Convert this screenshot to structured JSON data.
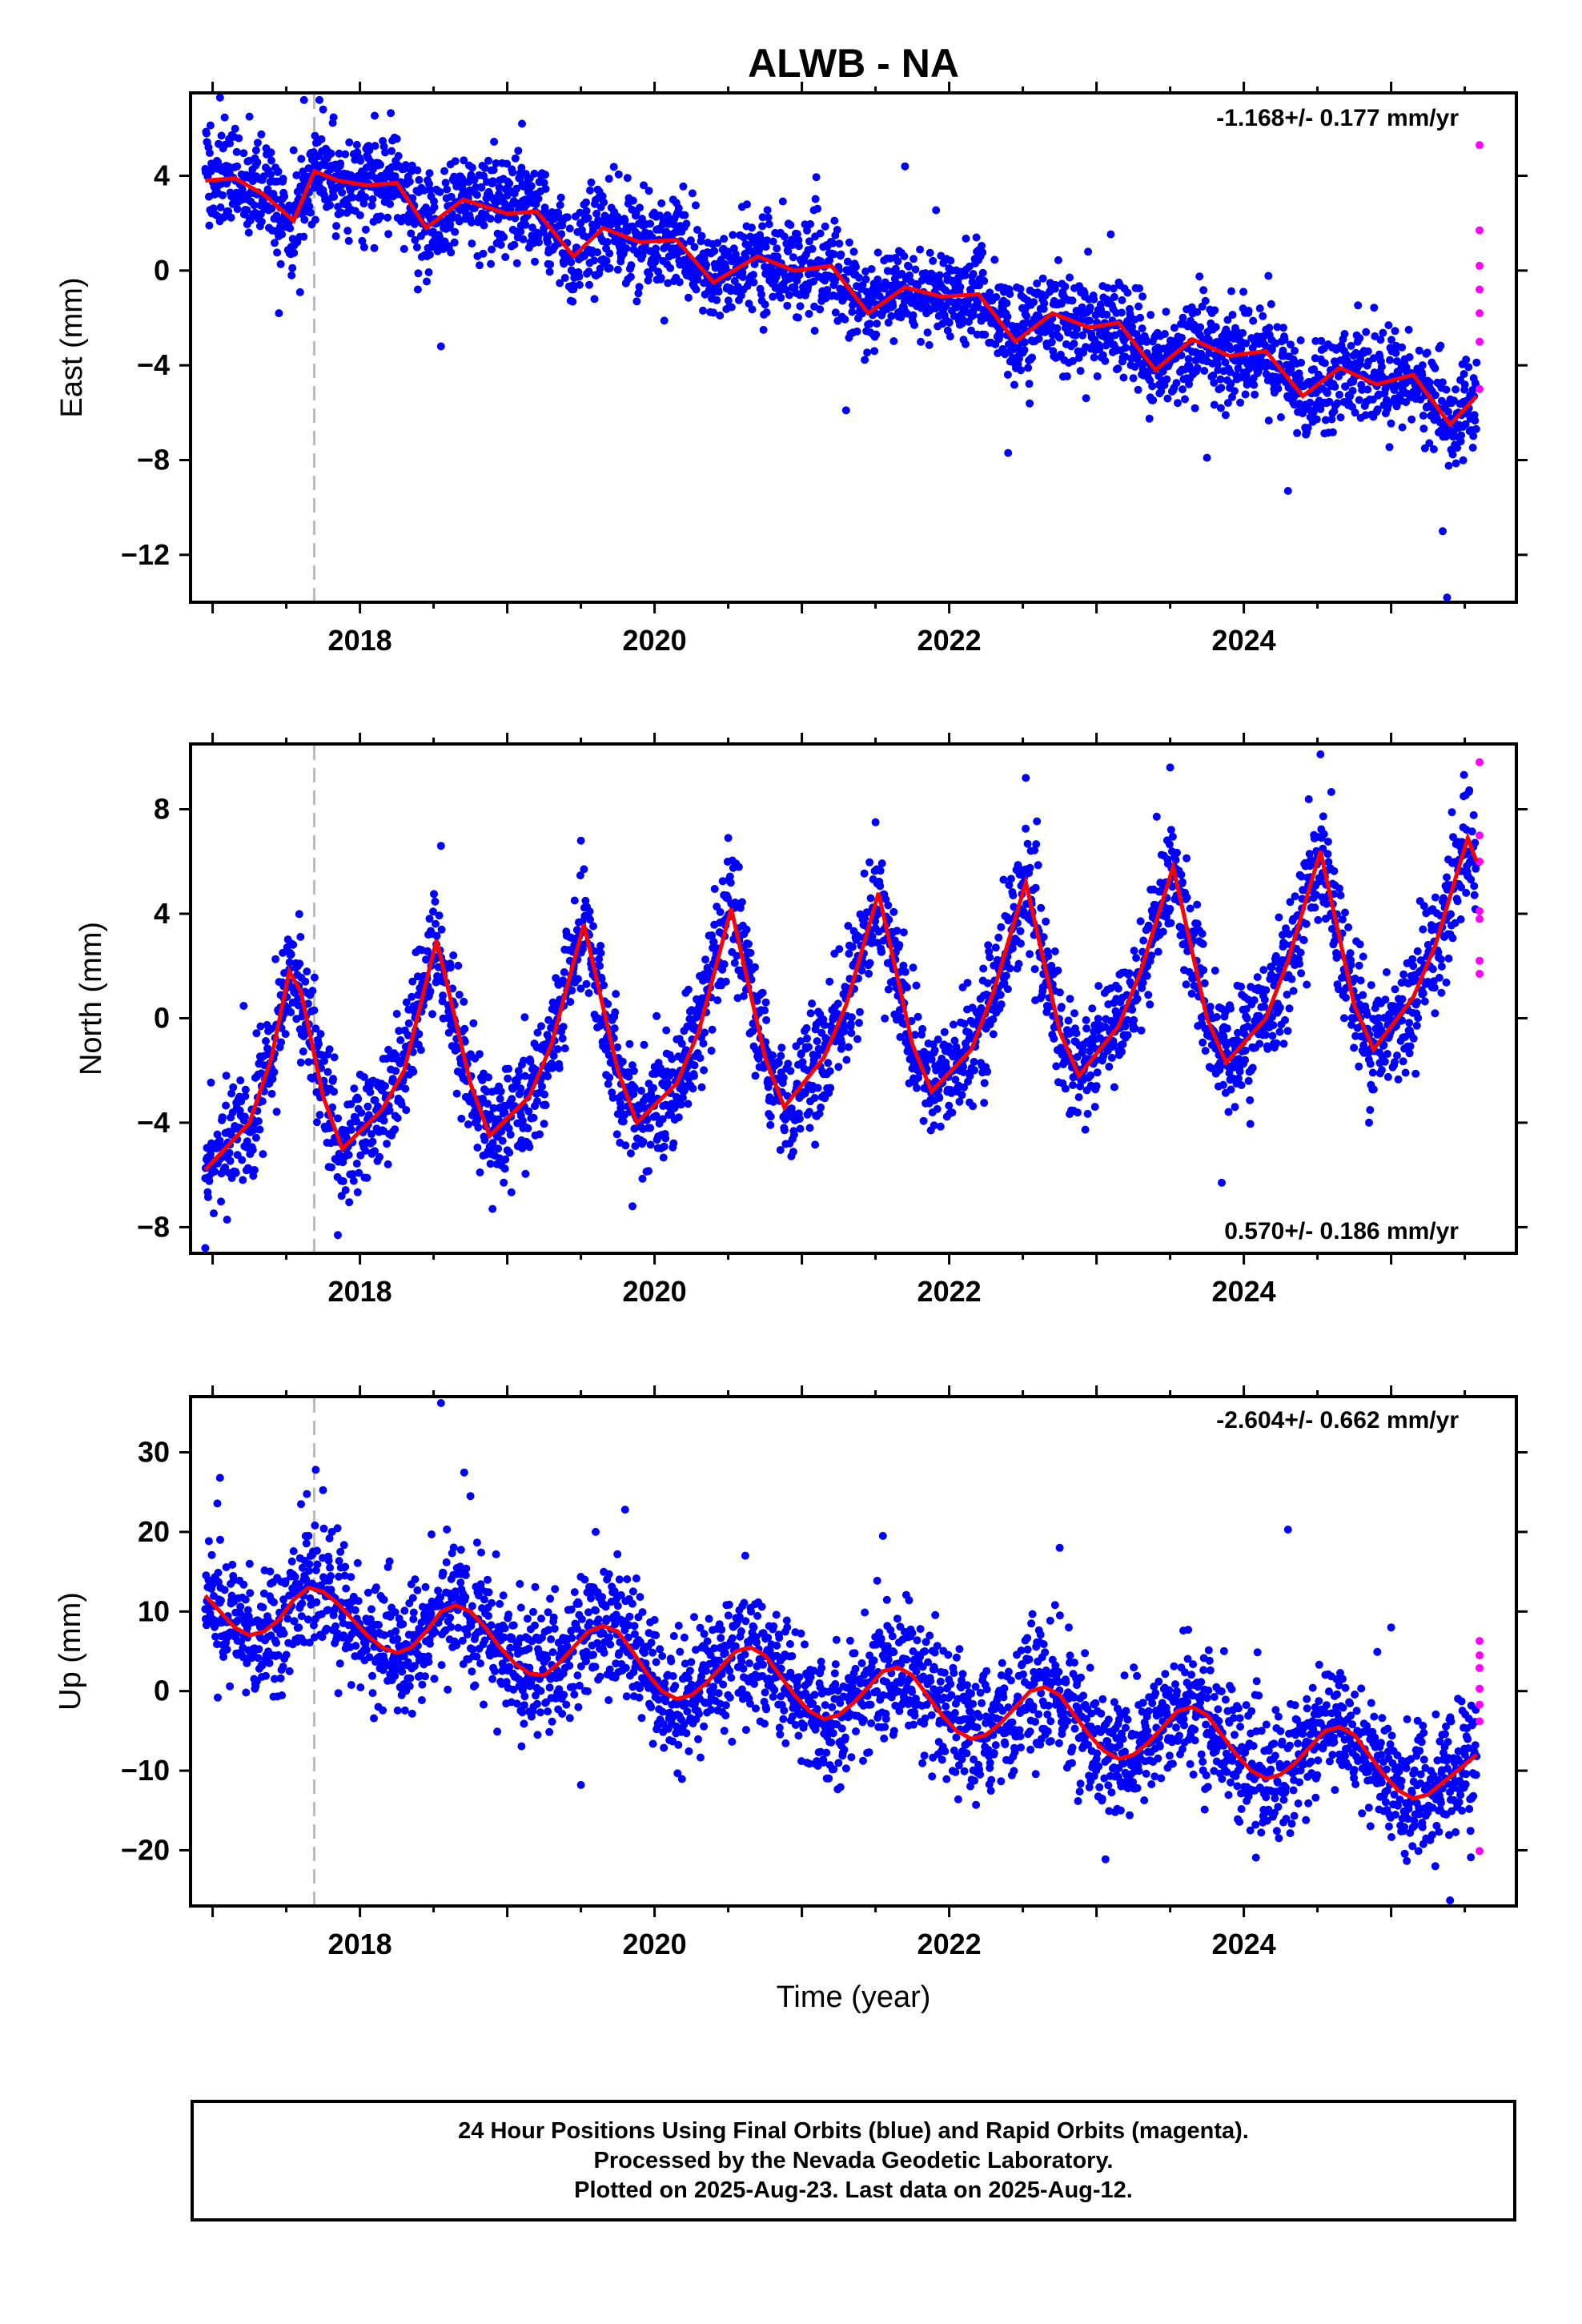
{
  "title": "ALWB - NA",
  "colors": {
    "final_orbits": "#0000ff",
    "rapid_orbits": "#ff00ff",
    "model": "#ff0000",
    "event_line": "#bbbbbb"
  },
  "xaxis": {
    "label": "Time (year)",
    "range": [
      2016.85,
      2025.85
    ],
    "ticks": [
      "2018",
      "2020",
      "2022",
      "2024"
    ]
  },
  "caption": {
    "line1": "24 Hour Positions Using Final Orbits (blue) and Rapid Orbits (magenta).",
    "line2": "Processed by the Nevada Geodetic Laboratory.",
    "line3": "Plotted on 2025-Aug-23. Last data on 2025-Aug-12."
  },
  "chart_data": [
    {
      "type": "scatter",
      "panel": "east",
      "ylabel": "East (mm)",
      "ylim": [
        -14,
        7.5
      ],
      "yticks": [
        "4",
        "0",
        "-4",
        "-8",
        "-12"
      ],
      "rate_text": "-1.168+/- 0.177 mm/yr",
      "rate_position": "top-right",
      "event_line_x": 2017.69,
      "model_curve": {
        "name": "model",
        "x": [
          2016.95,
          2017.15,
          2017.35,
          2017.55,
          2017.69,
          2017.85,
          2018.05,
          2018.25,
          2018.45,
          2018.7,
          2019.0,
          2019.2,
          2019.45,
          2019.65,
          2019.9,
          2020.15,
          2020.4,
          2020.7,
          2020.95,
          2021.2,
          2021.45,
          2021.7,
          2021.95,
          2022.2,
          2022.45,
          2022.7,
          2022.95,
          2023.15,
          2023.4,
          2023.65,
          2023.9,
          2024.15,
          2024.4,
          2024.65,
          2024.9,
          2025.15,
          2025.4,
          2025.58
        ],
        "values": [
          3.8,
          3.9,
          3.2,
          2.1,
          4.2,
          3.8,
          3.6,
          3.7,
          1.8,
          3.0,
          2.4,
          2.5,
          0.6,
          1.8,
          1.2,
          1.3,
          -0.5,
          0.6,
          0.0,
          0.2,
          -1.8,
          -0.7,
          -1.1,
          -1.0,
          -3.0,
          -1.8,
          -2.4,
          -2.2,
          -4.2,
          -2.9,
          -3.6,
          -3.4,
          -5.3,
          -4.1,
          -4.8,
          -4.4,
          -6.5,
          -5.3
        ]
      },
      "trend": {
        "start": [
          2016.95,
          3.5
        ],
        "end": [
          2025.58,
          -6.3
        ]
      },
      "seasonal": {
        "amplitude": 0.9,
        "phase": 0.2
      },
      "noise_sd": 1.0,
      "outliers": [
        [
          2017.05,
          7.3
        ],
        [
          2017.25,
          6.5
        ],
        [
          2017.45,
          -1.8
        ],
        [
          2017.62,
          7.2
        ],
        [
          2017.75,
          6.8
        ],
        [
          2019.1,
          6.2
        ],
        [
          2018.55,
          -3.2
        ],
        [
          2021.7,
          4.4
        ],
        [
          2021.3,
          -5.9
        ],
        [
          2022.4,
          -7.7
        ],
        [
          2023.75,
          -7.9
        ],
        [
          2024.3,
          -9.3
        ],
        [
          2025.35,
          -11.0
        ],
        [
          2025.38,
          -13.8
        ]
      ],
      "rapid_points": {
        "x": [
          2025.6,
          2025.6,
          2025.6,
          2025.6,
          2025.6,
          2025.6,
          2025.6
        ],
        "values": [
          5.3,
          1.7,
          0.2,
          -0.8,
          -1.8,
          -3.0,
          -5.0
        ]
      }
    },
    {
      "type": "scatter",
      "panel": "north",
      "ylabel": "North (mm)",
      "ylim": [
        -9,
        10.5
      ],
      "yticks": [
        "8",
        "4",
        "0",
        "-4",
        "-8"
      ],
      "rate_text": "0.570+/- 0.186 mm/yr",
      "rate_position": "bottom-right",
      "event_line_x": 2017.69,
      "model_curve": {
        "name": "model",
        "x": [
          2016.95,
          2017.25,
          2017.4,
          2017.52,
          2017.6,
          2017.75,
          2017.88,
          2018.15,
          2018.3,
          2018.52,
          2018.75,
          2018.88,
          2019.15,
          2019.3,
          2019.52,
          2019.75,
          2019.88,
          2020.15,
          2020.3,
          2020.52,
          2020.75,
          2020.88,
          2021.15,
          2021.3,
          2021.52,
          2021.75,
          2021.88,
          2022.15,
          2022.3,
          2022.52,
          2022.75,
          2022.88,
          2023.15,
          2023.3,
          2023.52,
          2023.75,
          2023.88,
          2024.15,
          2024.3,
          2024.52,
          2024.75,
          2024.88,
          2025.15,
          2025.3,
          2025.52,
          2025.58
        ],
        "values": [
          -5.8,
          -4.0,
          -1.5,
          1.8,
          1.0,
          -3.0,
          -5.0,
          -3.5,
          -2.0,
          3.0,
          -2.5,
          -4.5,
          -3.0,
          -1.0,
          3.6,
          -2.0,
          -4.0,
          -2.5,
          -0.5,
          4.2,
          -1.5,
          -3.4,
          -1.5,
          0.5,
          4.8,
          -1.0,
          -2.8,
          -1.2,
          1.0,
          5.2,
          -0.5,
          -2.2,
          -0.3,
          1.8,
          5.8,
          0.0,
          -1.7,
          0.0,
          2.2,
          6.4,
          0.5,
          -1.2,
          0.8,
          2.8,
          6.9,
          6.0
        ]
      },
      "noise_sd": 1.1,
      "outliers": [
        [
          2016.95,
          -8.8
        ],
        [
          2017.85,
          -8.3
        ],
        [
          2018.55,
          6.6
        ],
        [
          2018.9,
          -7.3
        ],
        [
          2019.5,
          6.8
        ],
        [
          2019.85,
          -7.2
        ],
        [
          2020.5,
          6.9
        ],
        [
          2021.5,
          7.5
        ],
        [
          2022.52,
          9.2
        ],
        [
          2023.5,
          9.6
        ],
        [
          2023.85,
          -6.3
        ],
        [
          2024.52,
          10.1
        ],
        [
          2024.85,
          -4.0
        ]
      ],
      "rapid_points": {
        "x": [
          2025.6,
          2025.6,
          2025.6,
          2025.6,
          2025.6,
          2025.6,
          2025.6
        ],
        "values": [
          9.8,
          7.0,
          6.0,
          4.1,
          3.8,
          2.2,
          1.7
        ]
      }
    },
    {
      "type": "scatter",
      "panel": "up",
      "ylabel": "Up (mm)",
      "ylim": [
        -27,
        37
      ],
      "yticks": [
        "30",
        "20",
        "10",
        "0",
        "-10",
        "-20"
      ],
      "rate_text": "-2.604+/- 0.662 mm/yr",
      "rate_position": "top-right",
      "event_line_x": 2017.69,
      "model_curve": {
        "name": "model",
        "x": [
          2016.95,
          2017.05,
          2017.15,
          2017.25,
          2017.35,
          2017.45,
          2017.55,
          2017.65,
          2017.75,
          2017.85,
          2017.95,
          2018.05,
          2018.15,
          2018.25,
          2018.35,
          2018.45,
          2018.55,
          2018.65,
          2018.75,
          2018.85,
          2018.95,
          2019.05,
          2019.15,
          2019.25,
          2019.35,
          2019.45,
          2019.55,
          2019.65,
          2019.75,
          2019.85,
          2019.95,
          2020.05,
          2020.15,
          2020.25,
          2020.35,
          2020.45,
          2020.55,
          2020.65,
          2020.75,
          2020.85,
          2020.95,
          2021.05,
          2021.15,
          2021.25,
          2021.35,
          2021.45,
          2021.55,
          2021.65,
          2021.75,
          2021.85,
          2021.95,
          2022.05,
          2022.15,
          2022.25,
          2022.35,
          2022.45,
          2022.55,
          2022.65,
          2022.75,
          2022.85,
          2022.95,
          2023.05,
          2023.15,
          2023.25,
          2023.35,
          2023.45,
          2023.55,
          2023.65,
          2023.75,
          2023.85,
          2023.95,
          2024.05,
          2024.15,
          2024.25,
          2024.35,
          2024.45,
          2024.55,
          2024.65,
          2024.75,
          2024.85,
          2024.95,
          2025.05,
          2025.15,
          2025.25,
          2025.35,
          2025.45,
          2025.58
        ],
        "values": [
          12.0,
          10.0,
          8.0,
          7.0,
          7.5,
          9.0,
          11.5,
          13.0,
          12.5,
          11.0,
          9.0,
          7.0,
          5.5,
          4.8,
          5.5,
          7.5,
          10.0,
          10.8,
          10.0,
          8.0,
          5.5,
          3.5,
          2.2,
          2.0,
          3.5,
          5.5,
          7.5,
          8.2,
          7.5,
          5.0,
          2.2,
          0.0,
          -1.0,
          -0.5,
          1.0,
          3.0,
          5.0,
          5.5,
          4.5,
          2.0,
          -0.5,
          -2.5,
          -3.5,
          -3.0,
          -1.5,
          0.5,
          2.5,
          3.0,
          2.0,
          -0.5,
          -3.0,
          -5.0,
          -6.0,
          -5.5,
          -4.0,
          -2.0,
          0.0,
          0.5,
          -0.5,
          -3.0,
          -5.5,
          -7.5,
          -8.5,
          -8.0,
          -6.5,
          -4.5,
          -2.5,
          -2.0,
          -3.0,
          -5.5,
          -8.0,
          -10.0,
          -11.0,
          -10.5,
          -9.0,
          -7.0,
          -5.0,
          -4.5,
          -5.5,
          -8.0,
          -10.5,
          -12.5,
          -13.5,
          -13.0,
          -11.5,
          -10.0,
          -8.0
        ]
      },
      "noise_sd": 4.0,
      "outliers": [
        [
          2017.05,
          26.8
        ],
        [
          2017.7,
          27.8
        ],
        [
          2017.6,
          23.5
        ],
        [
          2018.55,
          36.2
        ],
        [
          2018.75,
          24.5
        ],
        [
          2019.6,
          20.0
        ],
        [
          2019.8,
          22.8
        ],
        [
          2019.5,
          -11.8
        ],
        [
          2021.55,
          19.5
        ],
        [
          2022.75,
          18.0
        ],
        [
          2024.3,
          20.3
        ],
        [
          2025.0,
          8.0
        ],
        [
          2025.4,
          -26.3
        ],
        [
          2025.3,
          -22.0
        ]
      ],
      "rapid_points": {
        "x": [
          2025.6,
          2025.6,
          2025.6,
          2025.6,
          2025.6,
          2025.6,
          2025.6
        ],
        "values": [
          6.3,
          4.5,
          2.9,
          0.3,
          -1.7,
          -3.8,
          -20.1
        ]
      }
    }
  ]
}
